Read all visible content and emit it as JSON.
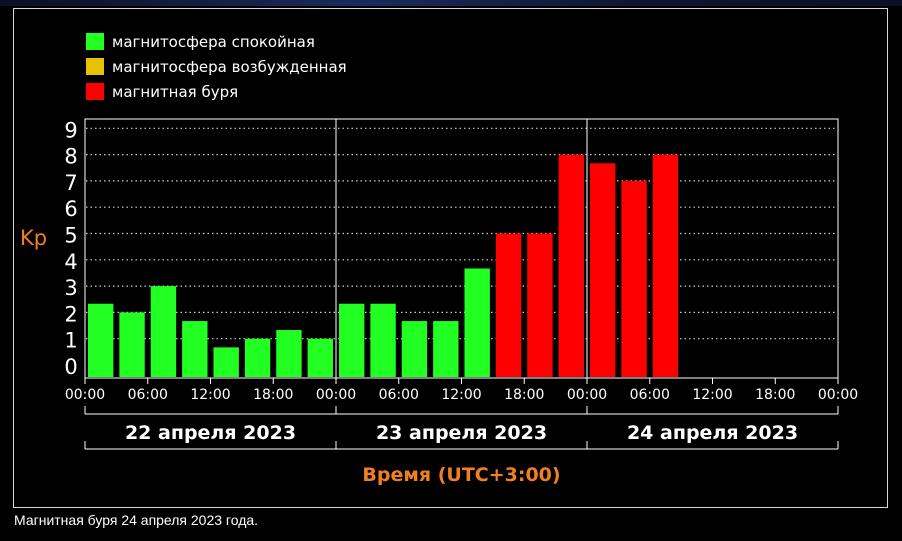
{
  "caption": "Магнитная буря 24 апреля 2023 года.",
  "chart_data": {
    "type": "bar",
    "legend": [
      {
        "label": "магнитосфера спокойная",
        "color": "#22ff22"
      },
      {
        "label": "магнитосфера возбужденная",
        "color": "#e6c200"
      },
      {
        "label": "магнитная буря",
        "color": "#ff0000"
      }
    ],
    "ylabel": "Kp",
    "xlabel": "Время (UTC+3:00)",
    "ylim": [
      0,
      9
    ],
    "yticks": [
      "0",
      "1",
      "2",
      "3",
      "4",
      "5",
      "6",
      "7",
      "8",
      "9"
    ],
    "xticks": [
      "00:00",
      "06:00",
      "12:00",
      "18:00",
      "00:00",
      "06:00",
      "12:00",
      "18:00",
      "00:00",
      "06:00",
      "12:00",
      "18:00",
      "00:00"
    ],
    "days": [
      "22 апреля 2023",
      "23 апреля 2023",
      "24 апреля 2023"
    ],
    "values": [
      2.33,
      2.0,
      3.0,
      1.67,
      0.67,
      1.0,
      1.33,
      1.0,
      2.33,
      2.33,
      1.67,
      1.67,
      3.67,
      5.0,
      5.0,
      8.0,
      7.67,
      7.0,
      8.0
    ],
    "levels": [
      "quiet",
      "quiet",
      "quiet",
      "quiet",
      "quiet",
      "quiet",
      "quiet",
      "quiet",
      "quiet",
      "quiet",
      "quiet",
      "quiet",
      "quiet",
      "storm",
      "storm",
      "storm",
      "storm",
      "storm",
      "storm"
    ],
    "colors": {
      "quiet": "#22ff22",
      "active": "#e6c200",
      "storm": "#ff0000"
    },
    "grid": true,
    "legend_position": "top-left"
  }
}
